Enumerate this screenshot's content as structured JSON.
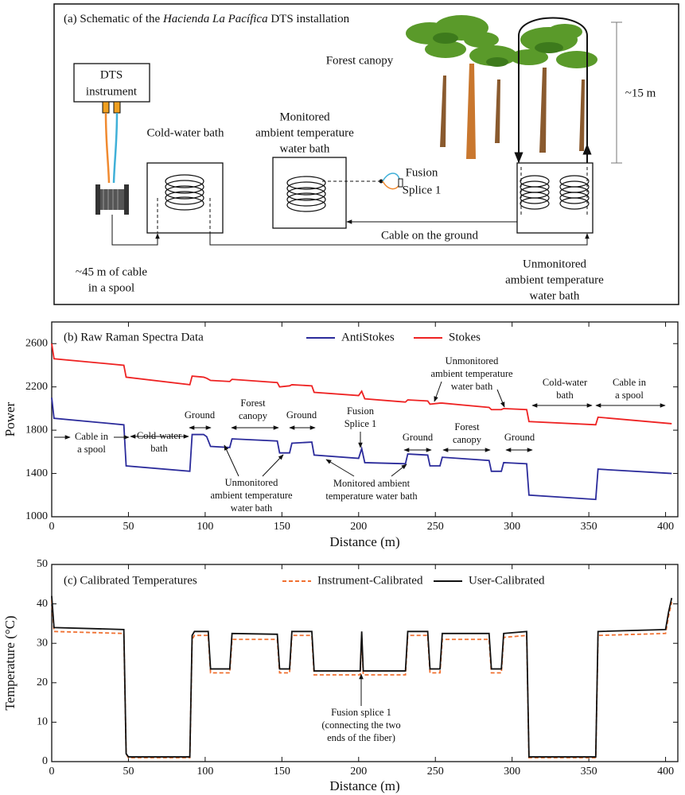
{
  "schematic": {
    "title": {
      "prefix": "(a) Schematic of the",
      "italic": "Hacienda La Pacífica",
      "suffix": "DTS installation"
    },
    "labels": {
      "dts_instrument": [
        "DTS",
        "instrument"
      ],
      "cold_water_bath": "Cold-water bath",
      "monitored_bath": [
        "Monitored",
        "ambient temperature",
        "water bath"
      ],
      "fusion_splice": [
        "Fusion",
        "Splice 1"
      ],
      "forest_canopy": "Forest canopy",
      "height": "~15 m",
      "cable_on_ground": "Cable on the ground",
      "spool_cable": [
        "~45 m of cable",
        "in a spool"
      ],
      "unmonitored_bath": [
        "Unmonitored",
        "ambient temperature",
        "water bath"
      ]
    }
  },
  "chart_data": [
    {
      "type": "line",
      "title": "(b) Raw Raman Spectra Data",
      "x_label": "Distance (m)",
      "y_label": "Power",
      "x": [
        0,
        1.5,
        47,
        48.5,
        90,
        91.5,
        99,
        101,
        103.5,
        116,
        117.5,
        147,
        148.5,
        155,
        156.5,
        169.5,
        171,
        200,
        202,
        204,
        230.5,
        232,
        245,
        246.5,
        253,
        254.5,
        285,
        286.5,
        293,
        294.5,
        309.5,
        311,
        354.5,
        356,
        404
      ],
      "series": [
        {
          "name": "AntiStokes",
          "color": "#2b2b9b",
          "values": [
            2100,
            1910,
            1850,
            1470,
            1420,
            1760,
            1760,
            1740,
            1650,
            1640,
            1720,
            1700,
            1590,
            1590,
            1680,
            1690,
            1570,
            1540,
            1630,
            1500,
            1490,
            1580,
            1570,
            1470,
            1470,
            1550,
            1520,
            1420,
            1420,
            1500,
            1490,
            1200,
            1160,
            1440,
            1400
          ]
        },
        {
          "name": "Stokes",
          "color": "#ee2222",
          "values": [
            2600,
            2460,
            2400,
            2290,
            2220,
            2300,
            2290,
            2280,
            2260,
            2250,
            2270,
            2240,
            2200,
            2210,
            2220,
            2210,
            2150,
            2120,
            2160,
            2090,
            2060,
            2080,
            2070,
            2040,
            2050,
            2050,
            2010,
            1990,
            1990,
            2000,
            1990,
            1880,
            1850,
            1920,
            1860
          ]
        }
      ],
      "xlim": [
        0,
        408
      ],
      "ylim": [
        1000,
        2800
      ],
      "xticks": [
        0,
        50,
        100,
        150,
        200,
        250,
        300,
        350,
        400
      ],
      "yticks": [
        1000,
        1400,
        1800,
        2200,
        2600
      ],
      "annotations": [
        {
          "lines": [
            "Cable in",
            "a spool"
          ]
        },
        {
          "lines": [
            "Cold-water",
            "bath"
          ]
        },
        {
          "lines": [
            "Ground"
          ]
        },
        {
          "lines": [
            "Forest",
            "canopy"
          ]
        },
        {
          "lines": [
            "Ground"
          ]
        },
        {
          "lines": [
            "Fusion",
            "Splice 1"
          ]
        },
        {
          "lines": [
            "Ground"
          ]
        },
        {
          "lines": [
            "Forest",
            "canopy"
          ]
        },
        {
          "lines": [
            "Ground"
          ]
        },
        {
          "lines": [
            "Unmonitored",
            "ambient temperature",
            "water bath"
          ]
        },
        {
          "lines": [
            "Monitored ambient",
            "temperature water bath"
          ]
        },
        {
          "lines": [
            "Unmonitored",
            "ambient temperature",
            "water bath"
          ]
        },
        {
          "lines": [
            "Cold-water",
            "bath"
          ]
        },
        {
          "lines": [
            "Cable in",
            "a spool"
          ]
        }
      ]
    },
    {
      "type": "line",
      "title": "(c) Calibrated Temperatures",
      "x_label": "Distance (m)",
      "y_label": "Temperature (°C)",
      "x": [
        0,
        1.5,
        47,
        48.5,
        50,
        90,
        91.5,
        93,
        102,
        103.5,
        116,
        117.5,
        147,
        148.5,
        155,
        156.5,
        169.5,
        171,
        201,
        202,
        203,
        230.5,
        232,
        245,
        246.5,
        253,
        254.5,
        285,
        286.5,
        293,
        294.5,
        309.5,
        311,
        354.5,
        356,
        400,
        402,
        404
      ],
      "series": [
        {
          "name": "Instrument-Calibrated",
          "color": "#f07030",
          "linestyle": "dashed",
          "values": [
            41,
            33,
            32.5,
            2,
            1,
            1,
            31,
            32,
            32,
            22.5,
            22.5,
            31,
            31,
            22.5,
            22.5,
            32,
            32,
            22,
            22,
            32,
            22,
            22,
            32,
            32,
            22.5,
            22.5,
            31,
            31,
            22.5,
            22.5,
            31.5,
            32,
            1,
            1,
            32,
            32.5,
            37,
            40.5
          ]
        },
        {
          "name": "User-Calibrated",
          "color": "#111111",
          "linestyle": "solid",
          "values": [
            42,
            34,
            33.5,
            2,
            1.2,
            1.2,
            32,
            33,
            33,
            23.5,
            23.5,
            32.5,
            32.3,
            23.5,
            23.5,
            33,
            33,
            23,
            23,
            33,
            23,
            23,
            33,
            33,
            23.5,
            23.5,
            32.5,
            32.5,
            23.5,
            23.5,
            32.5,
            33,
            1.2,
            1.2,
            33,
            33.5,
            38,
            41.5
          ]
        }
      ],
      "xlim": [
        0,
        408
      ],
      "ylim": [
        0,
        50
      ],
      "xticks": [
        0,
        50,
        100,
        150,
        200,
        250,
        300,
        350,
        400
      ],
      "yticks": [
        0,
        10,
        20,
        30,
        40,
        50
      ],
      "annotations": [
        {
          "lines": [
            "Fusion splice 1",
            "(connecting the two",
            "ends of the fiber)"
          ]
        }
      ]
    }
  ]
}
